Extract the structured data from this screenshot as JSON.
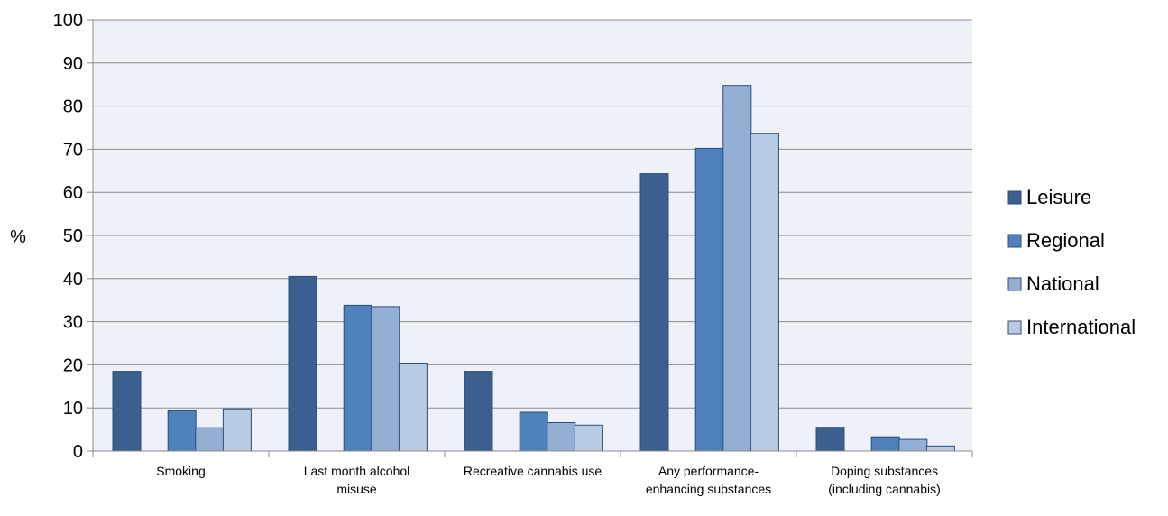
{
  "chart_data": {
    "type": "bar",
    "title": "",
    "xlabel": "",
    "ylabel": "%",
    "ylim": [
      0,
      100
    ],
    "yticks": [
      0,
      10,
      20,
      30,
      40,
      50,
      60,
      70,
      80,
      90,
      100
    ],
    "grid": true,
    "legend_position": "right",
    "categories": [
      [
        "Smoking"
      ],
      [
        "Last month alcohol",
        "misuse"
      ],
      [
        "Recreative cannabis use"
      ],
      [
        "Any performance-",
        "enhancing substances"
      ],
      [
        "Doping substances",
        "(including cannabis)"
      ]
    ],
    "series": [
      {
        "name": "Leisure",
        "color": "#3b5f8f",
        "values": [
          18.5,
          40.5,
          18.5,
          64.3,
          5.5
        ]
      },
      {
        "name": "Regional",
        "color": "#4f81bd",
        "values": [
          9.3,
          33.8,
          9.0,
          70.2,
          3.3
        ]
      },
      {
        "name": "National",
        "color": "#95aed4",
        "values": [
          5.4,
          33.5,
          6.6,
          84.8,
          2.7
        ]
      },
      {
        "name": "International",
        "color": "#b9cae4",
        "values": [
          9.8,
          20.4,
          6.0,
          73.7,
          1.2
        ]
      }
    ],
    "colors": {
      "plot_background": "#eef1f8",
      "gridline": "#8c8c8c",
      "bar_outline": "#2c4d7a"
    }
  }
}
